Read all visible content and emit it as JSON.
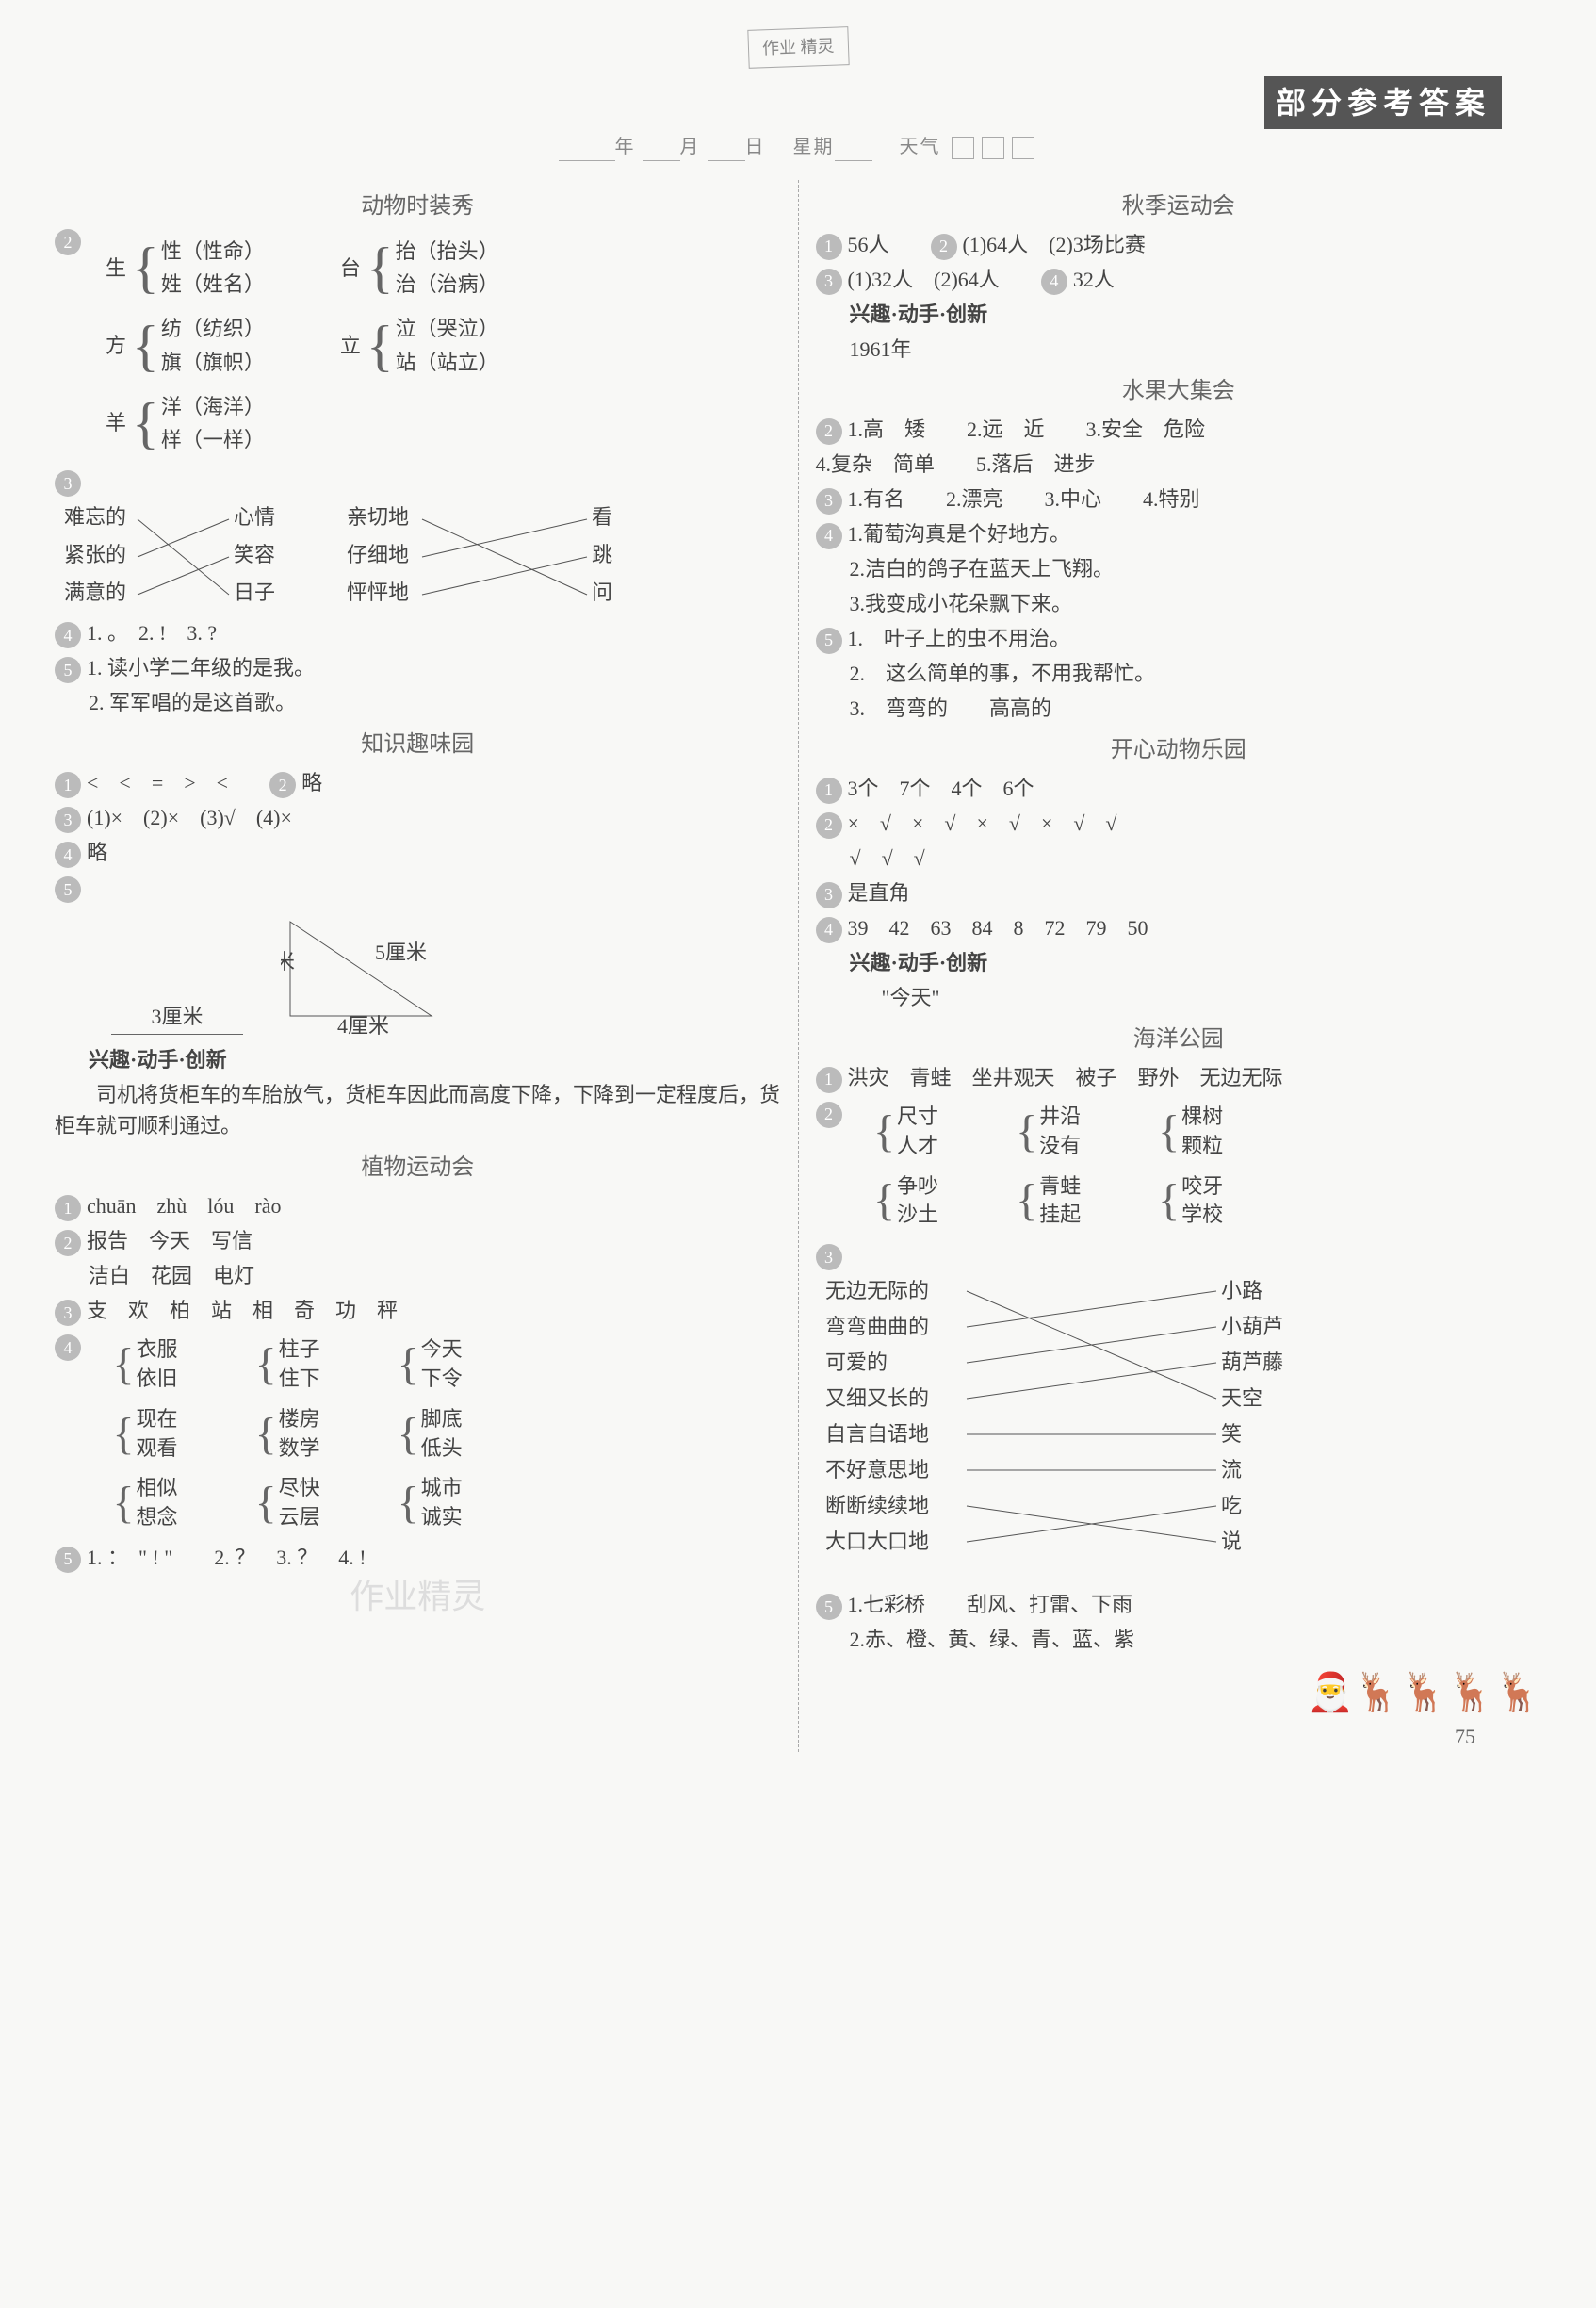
{
  "logo": "作业\n精灵",
  "banner": "部分参考答案",
  "dateline": {
    "y": "年",
    "m": "月",
    "d": "日",
    "w": "星期",
    "weather": "天气"
  },
  "left": {
    "s1_title": "动物时装秀",
    "braces1": [
      {
        "root": "生",
        "a": "性（性命）",
        "b": "姓（姓名）"
      },
      {
        "root": "台",
        "a": "抬（抬头）",
        "b": "治（治病）"
      },
      {
        "root": "方",
        "a": "纺（纺织）",
        "b": "旗（旗帜）"
      },
      {
        "root": "立",
        "a": "泣（哭泣）",
        "b": "站（站立）"
      },
      {
        "root": "羊",
        "a": "洋（海洋）",
        "b": "样（一样）"
      }
    ],
    "match1": {
      "left": [
        "难忘的",
        "紧张的",
        "满意的"
      ],
      "mid": [
        "心情",
        "笑容",
        "日子"
      ],
      "mid2": [
        "亲切地",
        "仔细地",
        "怦怦地"
      ],
      "right": [
        "看",
        "跳",
        "问"
      ]
    },
    "q4": "1. 。　2. !　3. ?",
    "q5a": "1. 读小学二年级的是我。",
    "q5b": "2. 军军唱的是这首歌。",
    "s2_title": "知识趣味园",
    "q21": "<　<　=　>　<",
    "q22": "略",
    "q23": "(1)×　(2)×　(3)√　(4)×",
    "q24": "略",
    "tri": {
      "a": "3厘米",
      "b": "3厘米",
      "c": "5厘米",
      "d": "4厘米"
    },
    "innov_title": "兴趣·动手·创新",
    "innov_text": "　　司机将货柜车的车胎放气，货柜车因此而高度下降，下降到一定程度后，货柜车就可顺利通过。",
    "s3_title": "植物运动会",
    "q31": "chuān　zhù　lóu　rào",
    "q32a": "报告　今天　写信",
    "q32b": "洁白　花园　电灯",
    "q33": "支　欢　柏　站　相　奇　功　秤",
    "braces2": [
      [
        {
          "a": "衣服",
          "b": "依旧"
        },
        {
          "a": "柱子",
          "b": "住下"
        },
        {
          "a": "今天",
          "b": "下令"
        }
      ],
      [
        {
          "a": "现在",
          "b": "观看"
        },
        {
          "a": "楼房",
          "b": "数学"
        },
        {
          "a": "脚底",
          "b": "低头"
        }
      ],
      [
        {
          "a": "相似",
          "b": "想念"
        },
        {
          "a": "尽快",
          "b": "云层"
        },
        {
          "a": "城市",
          "b": "诚实"
        }
      ]
    ],
    "q35": "1. ：　\" ! \"　　2. ？　3. ？　4. !",
    "wm": "作业精灵"
  },
  "right": {
    "s1_title": "秋季运动会",
    "r1": {
      "a": "56人",
      "b": "(1)64人　(2)3场比赛",
      "c": "(1)32人　(2)64人",
      "d": "32人"
    },
    "innov_title": "兴趣·动手·创新",
    "innov_text": "1961年",
    "s2_title": "水果大集会",
    "r2a": "1.高　矮　　2.远　近　　3.安全　危险",
    "r2b": "4.复杂　简单　　5.落后　进步",
    "r3": "1.有名　　2.漂亮　　3.中心　　4.特别",
    "r4a": "1.葡萄沟真是个好地方。",
    "r4b": "2.洁白的鸽子在蓝天上飞翔。",
    "r4c": "3.我变成小花朵飘下来。",
    "r5a": "1.　叶子上的虫不用治。",
    "r5b": "2.　这么简单的事，不用我帮忙。",
    "r5c": "3.　弯弯的　　高高的",
    "s3_title": "开心动物乐园",
    "r31": "3个　7个　4个　6个",
    "r32a": "×　√　×　√　×　√　×　√　√",
    "r32b": "√　√　√",
    "r33": "是直角",
    "r34": "39　42　63　84　8　72　79　50",
    "innov2_title": "兴趣·动手·创新",
    "innov2_text": "\"今天\"",
    "s4_title": "海洋公园",
    "r41": "洪灾　青蛙　坐井观天　被子　野外　无边无际",
    "braces": [
      [
        {
          "a": "尺寸",
          "b": "人才"
        },
        {
          "a": "井沿",
          "b": "没有"
        },
        {
          "a": "棵树",
          "b": "颗粒"
        }
      ],
      [
        {
          "a": "争吵",
          "b": "沙土"
        },
        {
          "a": "青蛙",
          "b": "挂起"
        },
        {
          "a": "咬牙",
          "b": "学校"
        }
      ]
    ],
    "match": {
      "left": [
        "无边无际的",
        "弯弯曲曲的",
        "可爱的",
        "又细又长的",
        "自言自语地",
        "不好意思地",
        "断断续续地",
        "大口大口地"
      ],
      "right": [
        "小路",
        "小葫芦",
        "葫芦藤",
        "天空",
        "笑",
        "流",
        "吃",
        "说"
      ]
    },
    "r5_1": "1.七彩桥　　刮风、打雷、下雨",
    "r5_2": "2.赤、橙、黄、绿、青、蓝、紫",
    "page": "75"
  }
}
